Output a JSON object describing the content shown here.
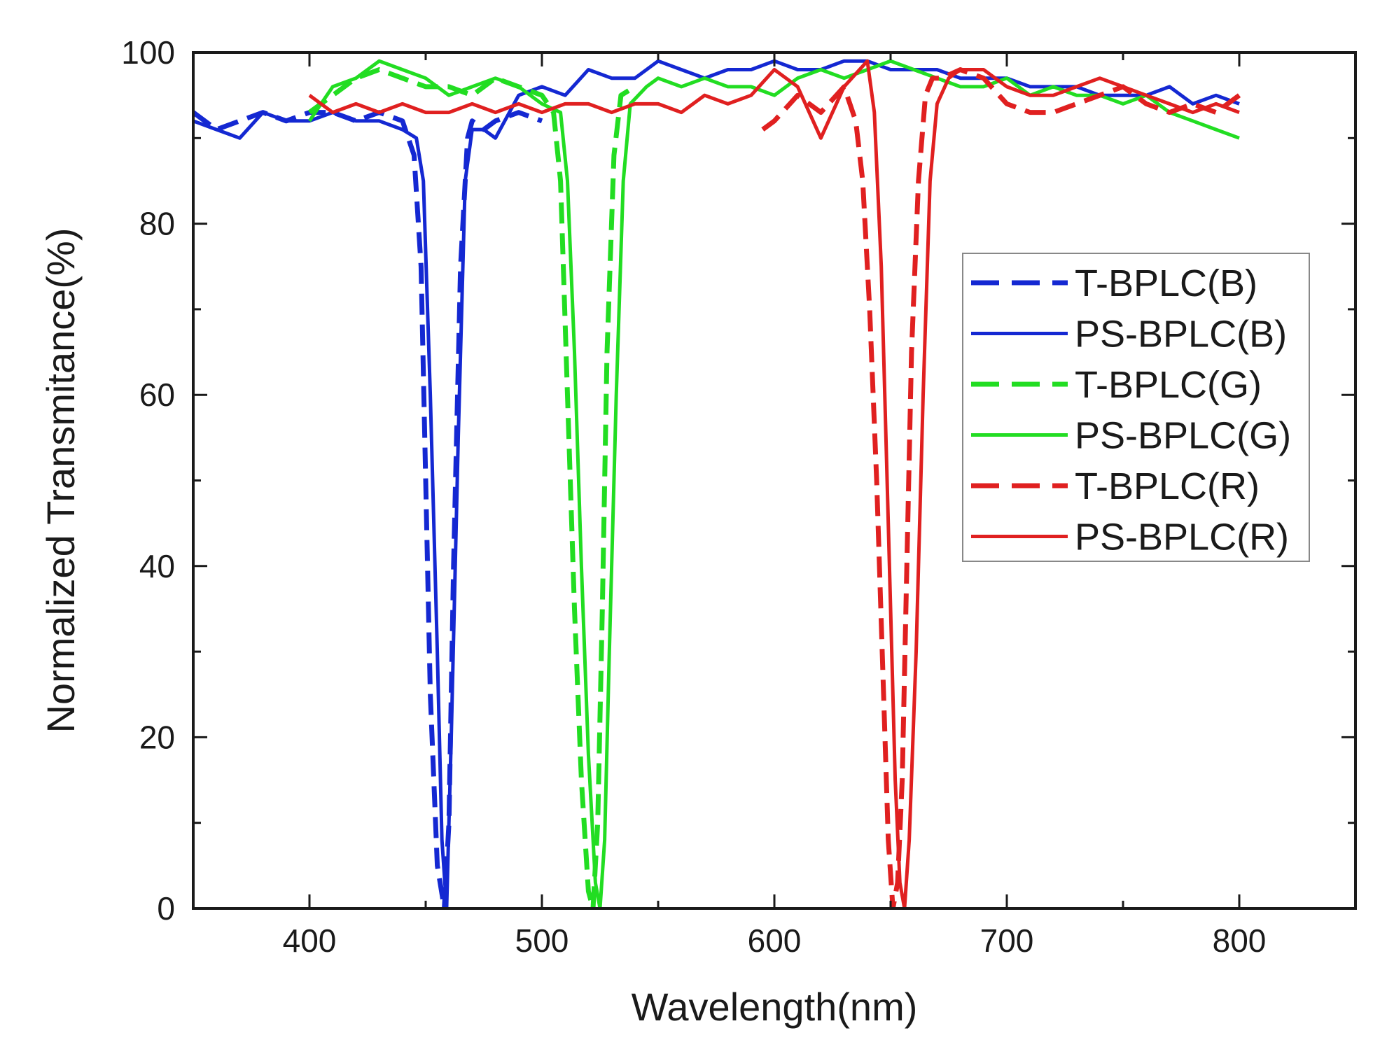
{
  "chart_data": {
    "type": "line",
    "title": "",
    "xlabel": "Wavelength(nm)",
    "ylabel": "Normalized Transmitance(%)",
    "xlim": [
      350,
      850
    ],
    "ylim": [
      0,
      100
    ],
    "x_ticks": [
      400,
      500,
      600,
      700,
      800
    ],
    "x_tick_labels": [
      "400",
      "500",
      "600",
      "700",
      "800"
    ],
    "y_ticks": [
      0,
      20,
      40,
      60,
      80,
      100
    ],
    "y_tick_labels": [
      "0",
      "20",
      "40",
      "60",
      "80",
      "100"
    ],
    "legend_position": "right",
    "grid": false,
    "series": [
      {
        "name": "T-BPLC(B)",
        "color": "#1428d2",
        "dash": "dashed",
        "x": [
          350,
          360,
          370,
          380,
          390,
          400,
          410,
          420,
          430,
          440,
          445,
          448,
          450,
          452,
          455,
          458,
          460,
          462,
          465,
          468,
          470,
          475,
          480,
          490,
          500
        ],
        "y": [
          93,
          91,
          92,
          93,
          92,
          93,
          93,
          92,
          93,
          92,
          88,
          75,
          50,
          25,
          5,
          0,
          10,
          40,
          75,
          90,
          92,
          91,
          92,
          93,
          92
        ]
      },
      {
        "name": "PS-BPLC(B)",
        "color": "#1428d2",
        "dash": "solid",
        "x": [
          350,
          360,
          370,
          380,
          390,
          400,
          410,
          420,
          430,
          440,
          446,
          449,
          452,
          455,
          457,
          459,
          461,
          464,
          467,
          470,
          475,
          480,
          490,
          500,
          510,
          520,
          530,
          540,
          550,
          560,
          570,
          580,
          590,
          600,
          610,
          620,
          630,
          640,
          650,
          660,
          670,
          680,
          690,
          700,
          710,
          720,
          730,
          740,
          750,
          760,
          770,
          780,
          790,
          800
        ],
        "y": [
          92,
          91,
          90,
          93,
          92,
          92,
          93,
          92,
          92,
          91,
          90,
          85,
          60,
          30,
          8,
          0,
          20,
          55,
          85,
          91,
          91,
          90,
          95,
          96,
          95,
          98,
          97,
          97,
          99,
          98,
          97,
          98,
          98,
          99,
          98,
          98,
          99,
          99,
          98,
          98,
          98,
          97,
          97,
          97,
          96,
          96,
          96,
          95,
          95,
          95,
          96,
          94,
          95,
          94
        ]
      },
      {
        "name": "T-BPLC(G)",
        "color": "#22dd22",
        "dash": "dashed",
        "x": [
          400,
          410,
          420,
          430,
          440,
          450,
          460,
          470,
          480,
          490,
          500,
          505,
          508,
          511,
          514,
          517,
          520,
          522,
          524,
          526,
          528,
          531,
          534,
          540
        ],
        "y": [
          93,
          95,
          97,
          98,
          97,
          96,
          96,
          95,
          97,
          96,
          95,
          93,
          85,
          60,
          35,
          15,
          2,
          0,
          10,
          35,
          65,
          88,
          95,
          96
        ]
      },
      {
        "name": "PS-BPLC(G)",
        "color": "#22dd22",
        "dash": "solid",
        "x": [
          400,
          410,
          420,
          430,
          440,
          450,
          460,
          470,
          480,
          490,
          500,
          508,
          511,
          514,
          517,
          520,
          523,
          525,
          527,
          529,
          532,
          535,
          538,
          545,
          550,
          560,
          570,
          580,
          590,
          600,
          610,
          620,
          630,
          640,
          650,
          660,
          670,
          680,
          690,
          700,
          710,
          720,
          730,
          740,
          750,
          760,
          770,
          780,
          790,
          800
        ],
        "y": [
          92,
          96,
          97,
          99,
          98,
          97,
          95,
          96,
          97,
          96,
          94,
          93,
          85,
          65,
          40,
          18,
          3,
          0,
          8,
          30,
          60,
          85,
          94,
          96,
          97,
          96,
          97,
          96,
          96,
          95,
          97,
          98,
          97,
          98,
          99,
          98,
          97,
          96,
          96,
          97,
          95,
          96,
          95,
          95,
          94,
          95,
          93,
          92,
          91,
          90
        ]
      },
      {
        "name": "T-BPLC(R)",
        "color": "#e02020",
        "dash": "dashed",
        "x": [
          595,
          600,
          610,
          620,
          630,
          635,
          638,
          641,
          644,
          647,
          649,
          651,
          653,
          655,
          657,
          659,
          662,
          665,
          668,
          672,
          680,
          690,
          700,
          710,
          720,
          730,
          740,
          750,
          760,
          770,
          780,
          790,
          800
        ],
        "y": [
          91,
          92,
          95,
          93,
          96,
          92,
          85,
          70,
          50,
          25,
          8,
          0,
          3,
          15,
          40,
          65,
          85,
          95,
          97,
          97,
          98,
          97,
          94,
          93,
          93,
          94,
          95,
          96,
          94,
          93,
          94,
          93,
          95
        ]
      },
      {
        "name": "PS-BPLC(R)",
        "color": "#e02020",
        "dash": "solid",
        "x": [
          400,
          410,
          420,
          430,
          440,
          450,
          460,
          470,
          480,
          490,
          500,
          510,
          520,
          530,
          540,
          550,
          560,
          570,
          580,
          590,
          600,
          610,
          620,
          630,
          640,
          643,
          646,
          649,
          652,
          654,
          656,
          658,
          661,
          664,
          667,
          670,
          675,
          680,
          690,
          700,
          710,
          720,
          730,
          740,
          750,
          760,
          770,
          780,
          790,
          800
        ],
        "y": [
          95,
          93,
          94,
          93,
          94,
          93,
          93,
          94,
          93,
          94,
          93,
          94,
          94,
          93,
          94,
          94,
          93,
          95,
          94,
          95,
          98,
          96,
          90,
          96,
          99,
          93,
          75,
          45,
          15,
          3,
          0,
          8,
          30,
          60,
          85,
          94,
          97,
          98,
          98,
          96,
          95,
          95,
          96,
          97,
          96,
          95,
          94,
          93,
          94,
          93
        ]
      }
    ]
  }
}
